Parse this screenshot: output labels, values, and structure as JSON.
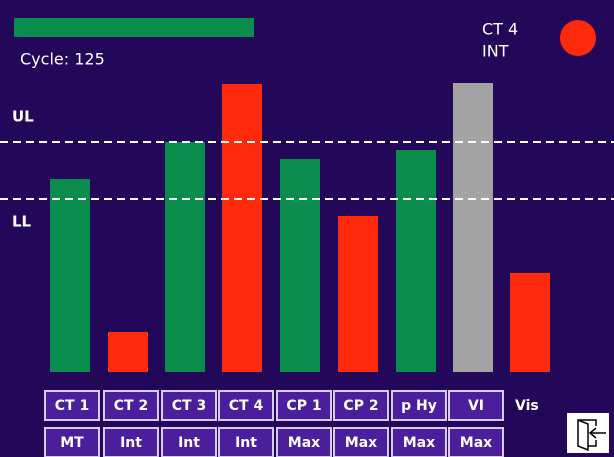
{
  "header": {
    "cycle": "Cycle: 125",
    "status": [
      "CT 4",
      "INT"
    ]
  },
  "chart_data": {
    "type": "bar",
    "categories": [
      "CT 1",
      "CT 2",
      "CT 3",
      "CT 4",
      "CP 1",
      "CP 2",
      "p Hy",
      "VI",
      "Vis"
    ],
    "values": [
      193,
      40,
      230,
      288,
      213,
      156,
      222,
      289,
      99
    ],
    "colors": [
      "#0a8c4c",
      "#ff2a0c",
      "#0a8c4c",
      "#ff2a0c",
      "#0a8c4c",
      "#ff2a0c",
      "#0a8c4c",
      "#a3a3a3",
      "#ff2a0c"
    ],
    "limits": [
      {
        "label": "UL",
        "value": 230
      },
      {
        "label": "LL",
        "value": 173
      }
    ]
  },
  "modes": [
    "MT",
    "Int",
    "Int",
    "Int",
    "Max",
    "Max",
    "Max",
    "Max"
  ]
}
